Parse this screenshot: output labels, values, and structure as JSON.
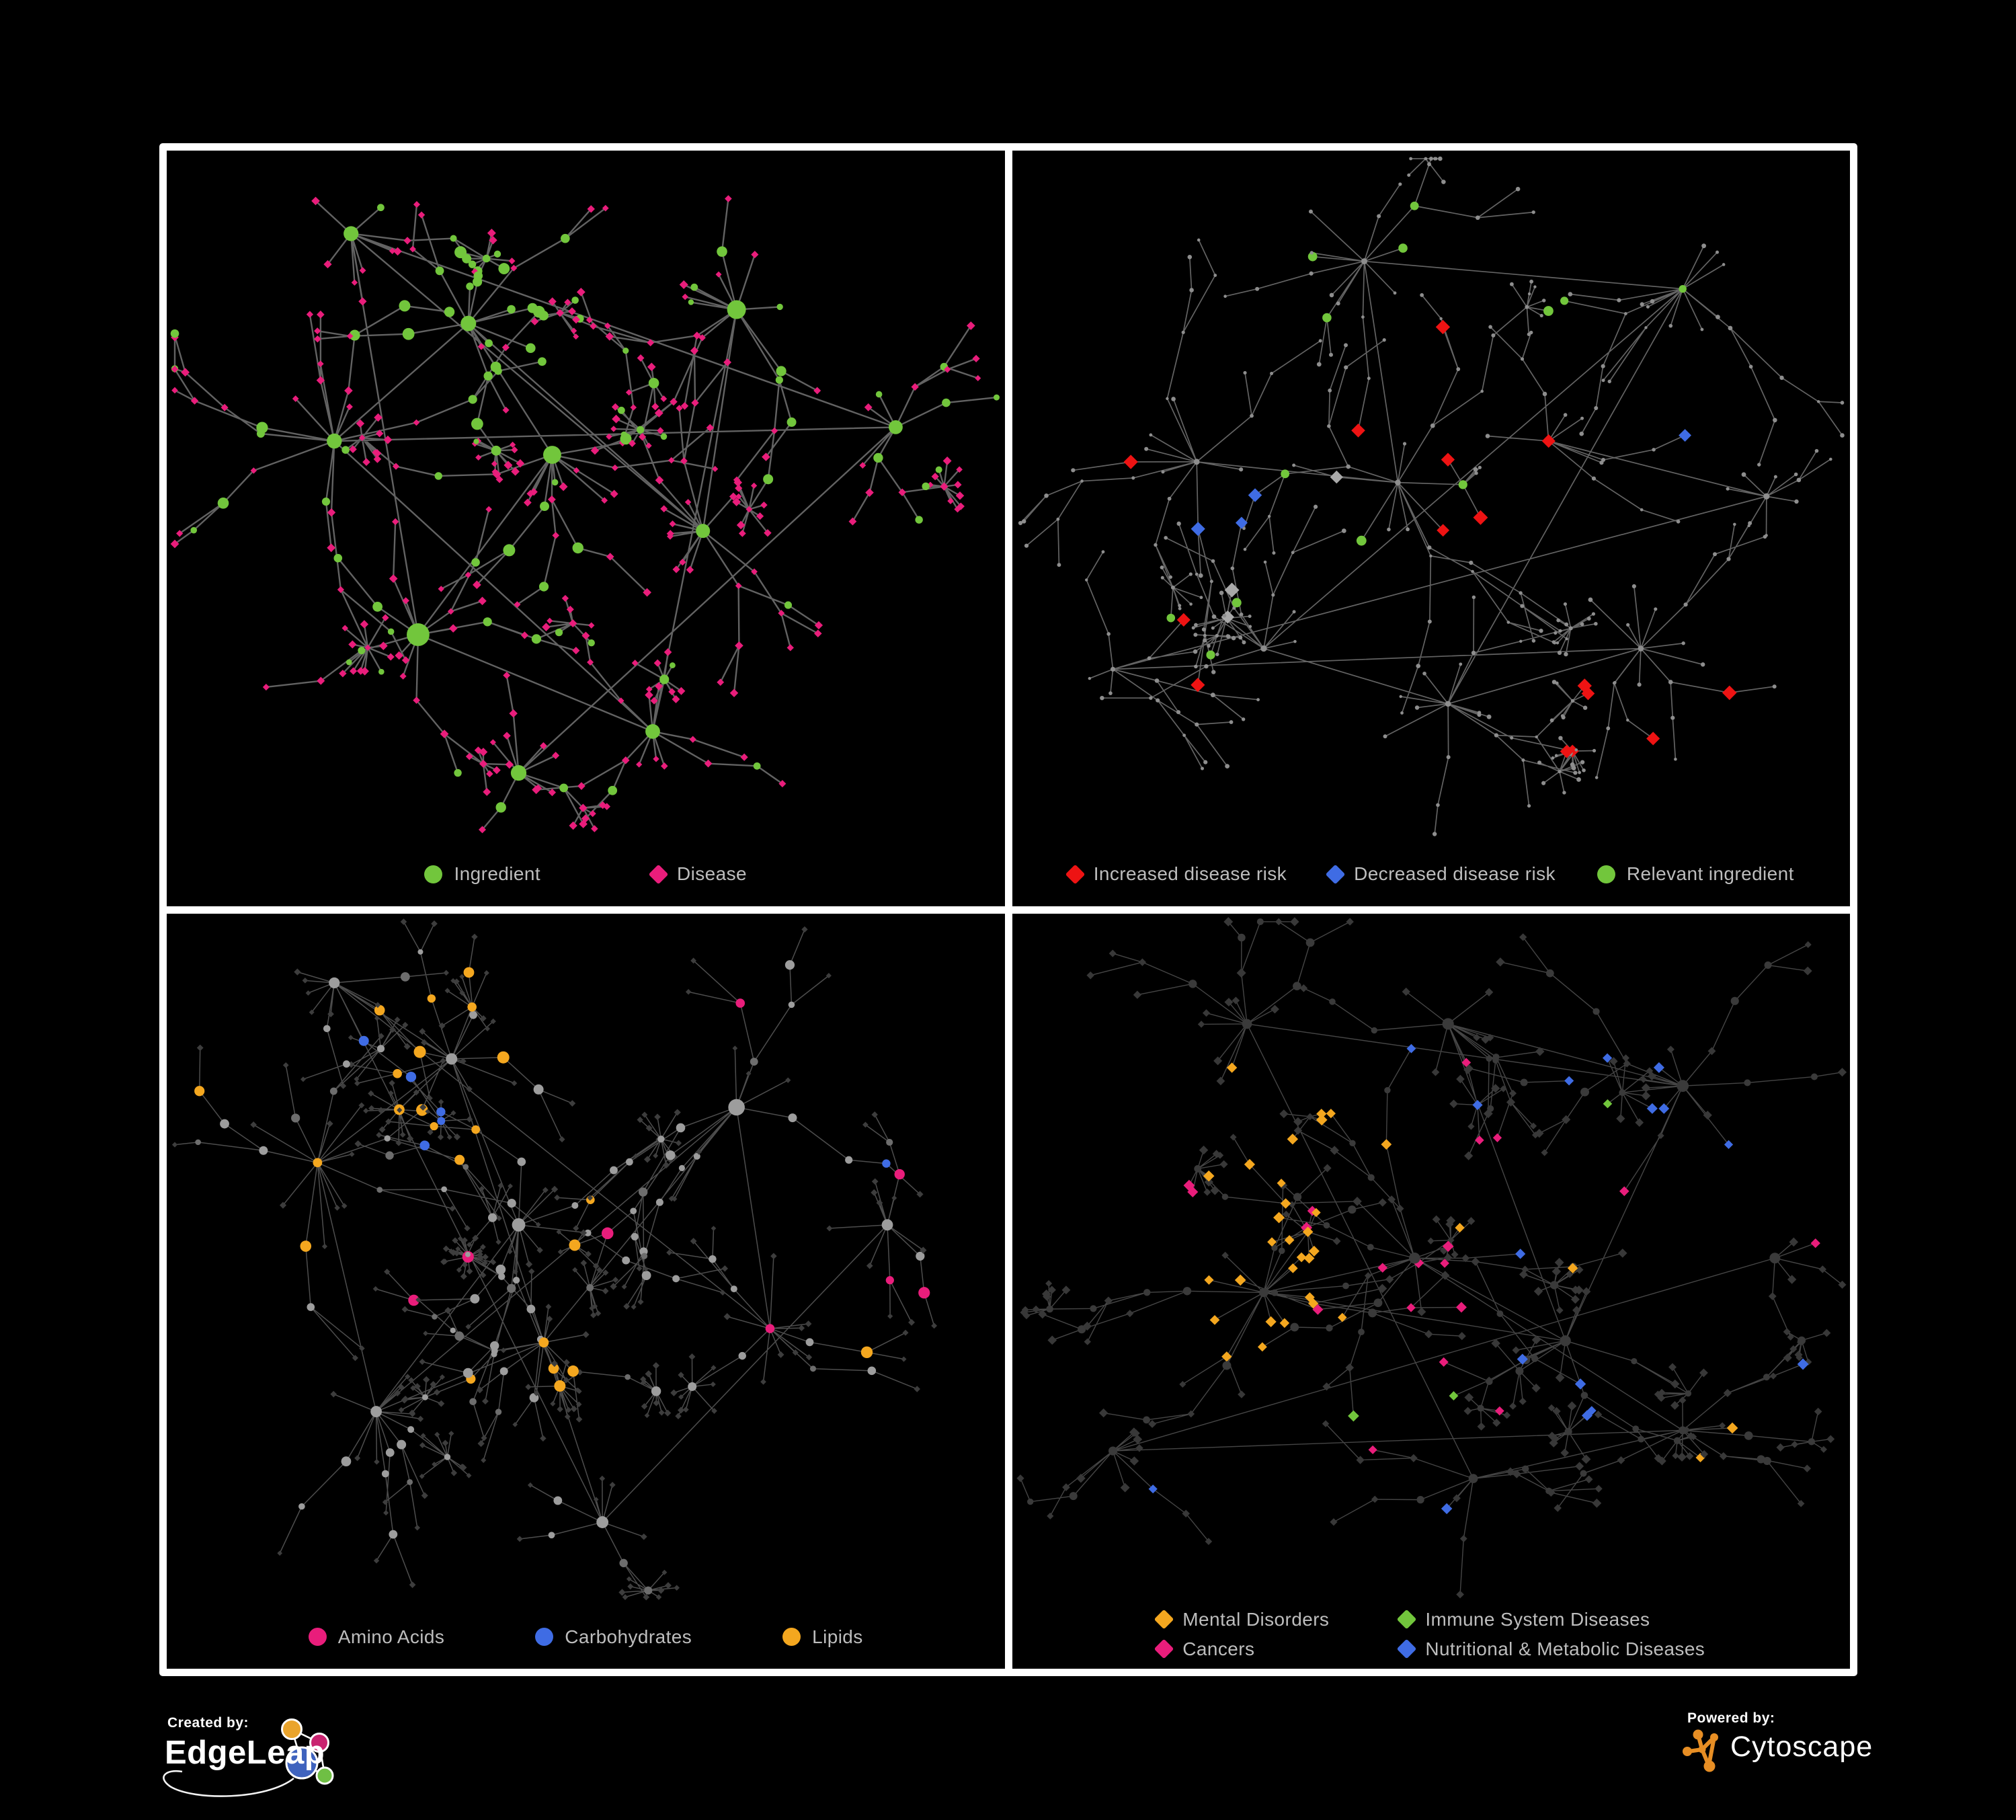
{
  "colors": {
    "background": "#000000",
    "panel_border": "#ffffff",
    "legend_text": "#bdbdbd",
    "green": "#72c63c",
    "magenta": "#e91d7b",
    "red": "#ee1313",
    "blue": "#3f6ce4",
    "orange": "#f4a71f",
    "gray_node": "#8e8e8e",
    "dim_node": "#3a3a3a",
    "cytoscape_orange": "#e78e24"
  },
  "panels": [
    {
      "id": "ingredient-disease",
      "legend": {
        "items": [
          {
            "shape": "circle",
            "color": "#72c63c",
            "label": "Ingredient"
          },
          {
            "shape": "diamond",
            "color": "#e91d7b",
            "label": "Disease"
          }
        ]
      },
      "network": {
        "seed": 11,
        "edge": {
          "color": "#6d6d6d",
          "width": 2.4,
          "opacity": 0.9
        },
        "clusters": [
          [
            0.2,
            0.42,
            9,
            4,
            0.075,
            0.1
          ],
          [
            0.36,
            0.25,
            8,
            3,
            0.062,
            0.12
          ],
          [
            0.46,
            0.44,
            8,
            4,
            0.065,
            0.08
          ],
          [
            0.3,
            0.7,
            6,
            3,
            0.06,
            0.14
          ],
          [
            0.58,
            0.84,
            5,
            3,
            0.055,
            0.3
          ],
          [
            0.68,
            0.23,
            7,
            4,
            0.07,
            0.1
          ],
          [
            0.64,
            0.55,
            6,
            3,
            0.06,
            0.12
          ],
          [
            0.22,
            0.12,
            4,
            3,
            0.06,
            0.06
          ],
          [
            0.87,
            0.4,
            4,
            3,
            0.055,
            0.12
          ],
          [
            0.42,
            0.9,
            3,
            2,
            0.05,
            0.25
          ]
        ],
        "rules": [
          {
            "role": "hub",
            "shape": "circle",
            "color": "#72c63c",
            "size": [
              10,
              17
            ]
          },
          {
            "region": [
              0.36,
              0.25,
              0.1
            ],
            "prob": 0.8,
            "shape": "circle",
            "color": "#72c63c",
            "size": [
              5,
              9
            ]
          },
          {
            "role": "internal",
            "prob": 0.4,
            "shape": "circle",
            "color": "#72c63c",
            "size": [
              4.5,
              9
            ]
          },
          {
            "role": "leaf",
            "prob": 0.1,
            "shape": "circle",
            "color": "#72c63c",
            "size": [
              4,
              6.5
            ]
          },
          {
            "shape": "diamond",
            "color": "#e91d7b",
            "size": [
              4.5,
              6.5
            ]
          }
        ]
      }
    },
    {
      "id": "disease-risk",
      "legend": {
        "items": [
          {
            "shape": "diamond",
            "color": "#ee1313",
            "label": "Increased disease risk"
          },
          {
            "shape": "diamond",
            "color": "#3f6ce4",
            "label": "Decreased disease risk"
          },
          {
            "shape": "circle",
            "color": "#72c63c",
            "label": "Relevant ingredient"
          }
        ]
      },
      "network": {
        "seed": 22,
        "edge": {
          "color": "#7c7c7c",
          "width": 1.7,
          "opacity": 0.8
        },
        "clusters": [
          [
            0.22,
            0.45,
            8,
            4,
            0.07,
            0.08
          ],
          [
            0.46,
            0.48,
            9,
            4,
            0.07,
            0.08
          ],
          [
            0.42,
            0.16,
            6,
            3,
            0.065,
            0.06
          ],
          [
            0.8,
            0.2,
            6,
            4,
            0.068,
            0.08
          ],
          [
            0.3,
            0.72,
            6,
            3,
            0.06,
            0.1
          ],
          [
            0.52,
            0.8,
            6,
            3,
            0.06,
            0.16
          ],
          [
            0.75,
            0.72,
            6,
            3,
            0.06,
            0.12
          ],
          [
            0.12,
            0.75,
            4,
            3,
            0.055,
            0.1
          ],
          [
            0.9,
            0.5,
            3,
            2,
            0.05,
            0.1
          ],
          [
            0.64,
            0.42,
            5,
            3,
            0.055,
            0.08
          ]
        ],
        "rules": [
          {
            "region": [
              0.82,
              0.38,
              0.05
            ],
            "prob": 0.6,
            "shape": "diamond",
            "color": "#3f6ce4",
            "size": [
              9,
              11
            ]
          },
          {
            "region": [
              0.25,
              0.48,
              0.09
            ],
            "prob": 0.22,
            "shape": "diamond",
            "color": "#3f6ce4",
            "size": [
              9,
              12
            ]
          },
          {
            "region": [
              0.42,
              0.52,
              0.16
            ],
            "prob": 0.13,
            "shape": "diamond",
            "color": "#ee1313",
            "size": [
              9,
              12
            ]
          },
          {
            "region": [
              0.38,
              0.5,
              0.3
            ],
            "prob": 0.035,
            "shape": "diamond",
            "color": "#ee1313",
            "size": [
              9,
              11
            ]
          },
          {
            "region": [
              0.75,
              0.82,
              0.12
            ],
            "prob": 0.12,
            "shape": "diamond",
            "color": "#ee1313",
            "size": [
              9,
              11
            ]
          },
          {
            "region": [
              0.45,
              0.5,
              0.32
            ],
            "prob": 0.06,
            "shape": "circle",
            "color": "#72c63c",
            "size": [
              5.5,
              7.5
            ]
          },
          {
            "prob": 0.012,
            "shape": "circle",
            "color": "#72c63c",
            "size": [
              5.5,
              7
            ]
          },
          {
            "region": [
              0.33,
              0.5,
              0.22
            ],
            "prob": 0.03,
            "shape": "diamond",
            "color": "#a9a9a9",
            "size": [
              9,
              11
            ]
          },
          {
            "role": "hub",
            "shape": "circle",
            "color": "#8e8e8e",
            "size": [
              3.5,
              5
            ]
          },
          {
            "shape": "circle",
            "color": "#8e8e8e",
            "size": [
              2.2,
              3.4
            ]
          }
        ]
      }
    },
    {
      "id": "nutrient-classes",
      "legend": {
        "items": [
          {
            "shape": "circle",
            "color": "#e91d7b",
            "label": "Amino Acids"
          },
          {
            "shape": "circle",
            "color": "#3f6ce4",
            "label": "Carbohydrates"
          },
          {
            "shape": "circle",
            "color": "#f4a71f",
            "label": "Lipids"
          }
        ]
      },
      "network": {
        "seed": 33,
        "edge": {
          "color": "#9a9a9a",
          "width": 1.5,
          "opacity": 0.5
        },
        "clusters": [
          [
            0.18,
            0.36,
            9,
            4,
            0.075,
            0.1
          ],
          [
            0.34,
            0.21,
            8,
            3,
            0.06,
            0.12
          ],
          [
            0.42,
            0.45,
            8,
            4,
            0.065,
            0.08
          ],
          [
            0.25,
            0.72,
            6,
            3,
            0.06,
            0.12
          ],
          [
            0.45,
            0.62,
            6,
            3,
            0.055,
            0.3
          ],
          [
            0.68,
            0.28,
            7,
            4,
            0.07,
            0.1
          ],
          [
            0.72,
            0.6,
            6,
            3,
            0.06,
            0.12
          ],
          [
            0.2,
            0.1,
            4,
            3,
            0.06,
            0.06
          ],
          [
            0.52,
            0.88,
            4,
            2,
            0.055,
            0.3
          ],
          [
            0.86,
            0.45,
            4,
            3,
            0.055,
            0.12
          ]
        ],
        "rules": [
          {
            "role": "leaf",
            "shape": "diamond",
            "color": "#3d3d3d",
            "size": [
              3.8,
              5.2
            ]
          },
          {
            "region": [
              0.34,
              0.21,
              0.12
            ],
            "prob": 0.55,
            "shape": "circle",
            "color": "#f4a71f",
            "size": [
              6,
              9
            ]
          },
          {
            "region": [
              0.34,
              0.21,
              0.12
            ],
            "prob": 0.3,
            "shape": "circle",
            "color": "#3f6ce4",
            "size": [
              6,
              8
            ]
          },
          {
            "region": [
              0.45,
              0.62,
              0.05
            ],
            "prob": 0.7,
            "shape": "circle",
            "color": "#f4a71f",
            "size": [
              7,
              10
            ]
          },
          {
            "prob": 0.055,
            "shape": "circle",
            "color": "#f4a71f",
            "size": [
              6,
              9
            ]
          },
          {
            "prob": 0.04,
            "shape": "circle",
            "color": "#e91d7b",
            "size": [
              6,
              9
            ]
          },
          {
            "prob": 0.012,
            "shape": "circle",
            "color": "#3f6ce4",
            "size": [
              6,
              8
            ]
          },
          {
            "role": "hub",
            "shape": "circle",
            "color": "#9d9d9d",
            "size": [
              8,
              13
            ]
          },
          {
            "prob": 0.25,
            "shape": "circle",
            "color": "#6d6d6d",
            "size": [
              4,
              7
            ]
          },
          {
            "shape": "circle",
            "color": "#9d9d9d",
            "size": [
              4,
              7.5
            ]
          }
        ]
      }
    },
    {
      "id": "disease-categories",
      "legend": {
        "items": [
          {
            "shape": "diamond",
            "color": "#f4a71f",
            "label": "Mental Disorders"
          },
          {
            "shape": "diamond",
            "color": "#72c63c",
            "label": "Immune System Diseases"
          },
          {
            "shape": "diamond",
            "color": "#e91d7b",
            "label": "Cancers"
          },
          {
            "shape": "diamond",
            "color": "#3f6ce4",
            "label": "Nutritional & Metabolic Diseases"
          }
        ]
      },
      "network": {
        "seed": 44,
        "edge": {
          "color": "#9a9a9a",
          "width": 1.4,
          "opacity": 0.45
        },
        "clusters": [
          [
            0.3,
            0.55,
            9,
            4,
            0.068,
            0.14
          ],
          [
            0.48,
            0.5,
            9,
            4,
            0.068,
            0.1
          ],
          [
            0.66,
            0.62,
            7,
            3,
            0.06,
            0.12
          ],
          [
            0.52,
            0.16,
            7,
            3,
            0.065,
            0.08
          ],
          [
            0.8,
            0.25,
            6,
            4,
            0.065,
            0.1
          ],
          [
            0.28,
            0.16,
            5,
            3,
            0.06,
            0.08
          ],
          [
            0.55,
            0.82,
            6,
            3,
            0.06,
            0.12
          ],
          [
            0.8,
            0.75,
            5,
            3,
            0.06,
            0.16
          ],
          [
            0.12,
            0.78,
            4,
            3,
            0.055,
            0.1
          ],
          [
            0.91,
            0.5,
            3,
            2,
            0.05,
            0.1
          ]
        ],
        "rules": [
          {
            "role": "hub",
            "shape": "circle",
            "color": "#3a3a3a",
            "size": [
              6,
              9
            ]
          },
          {
            "role": "internal",
            "prob": 0.5,
            "shape": "circle",
            "color": "#3a3a3a",
            "size": [
              4.5,
              6.5
            ]
          },
          {
            "region": [
              0.3,
              0.55,
              0.11
            ],
            "prob": 0.6,
            "shape": "diamond",
            "color": "#f4a71f",
            "size": [
              6.5,
              8.5
            ]
          },
          {
            "region": [
              0.3,
              0.4,
              0.16
            ],
            "prob": 0.18,
            "shape": "diamond",
            "color": "#f4a71f",
            "size": [
              6.5,
              8.5
            ]
          },
          {
            "region": [
              0.46,
              0.6,
              0.1
            ],
            "prob": 0.45,
            "shape": "diamond",
            "color": "#e91d7b",
            "size": [
              6.5,
              8.5
            ]
          },
          {
            "region": [
              0.5,
              0.45,
              0.18
            ],
            "prob": 0.12,
            "shape": "diamond",
            "color": "#e91d7b",
            "size": [
              6.5,
              8.5
            ]
          },
          {
            "region": [
              0.66,
              0.67,
              0.07
            ],
            "prob": 0.5,
            "shape": "diamond",
            "color": "#3f6ce4",
            "size": [
              6.5,
              8.5
            ]
          },
          {
            "region": [
              0.82,
              0.22,
              0.16
            ],
            "prob": 0.28,
            "shape": "diamond",
            "color": "#3f6ce4",
            "size": [
              6.5,
              8.5
            ]
          },
          {
            "region": [
              0.9,
              0.33,
              0.05
            ],
            "prob": 0.5,
            "shape": "diamond",
            "color": "#e91d7b",
            "size": [
              6.5,
              8.5
            ]
          },
          {
            "prob": 0.04,
            "shape": "diamond",
            "color": "#3f6ce4",
            "size": [
              6.5,
              8.5
            ]
          },
          {
            "prob": 0.03,
            "shape": "diamond",
            "color": "#e91d7b",
            "size": [
              6.5,
              8.5
            ]
          },
          {
            "prob": 0.025,
            "shape": "diamond",
            "color": "#f4a71f",
            "size": [
              6.5,
              8.5
            ]
          },
          {
            "prob": 0.012,
            "shape": "diamond",
            "color": "#72c63c",
            "size": [
              6.5,
              8.5
            ]
          },
          {
            "shape": "diamond",
            "color": "#383838",
            "size": [
              5,
              7
            ]
          }
        ]
      }
    }
  ],
  "footer": {
    "created_by": {
      "label": "Created by:",
      "brand": "EdgeLeap"
    },
    "powered_by": {
      "label": "Powered by:",
      "brand": "Cytoscape"
    }
  }
}
